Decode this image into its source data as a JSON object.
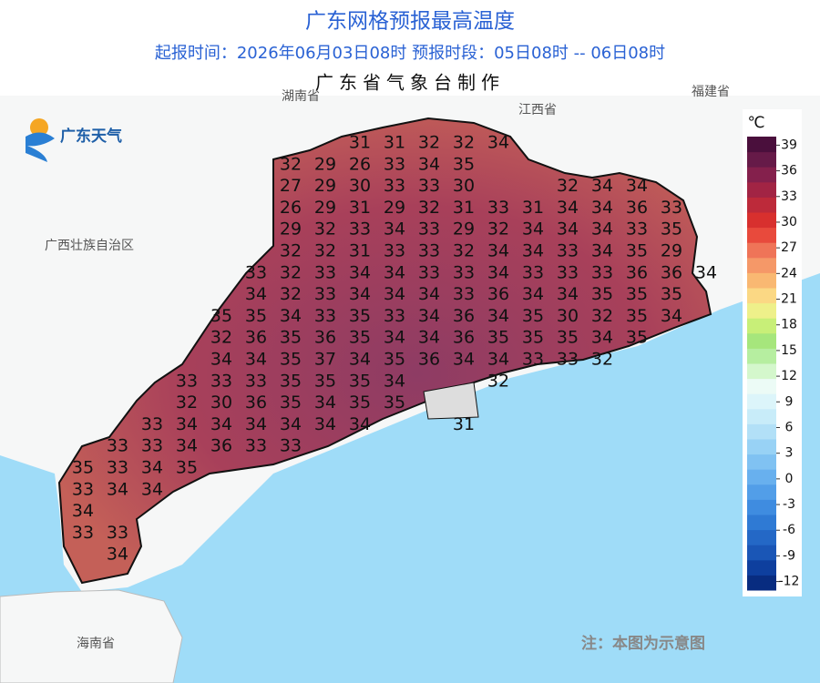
{
  "header": {
    "title": "广东网格预报最高温度",
    "subtitle": "起报时间：2026年06月03日08时   预报时段：05日08时 -- 06日08时",
    "producer": "广东省气象台制作"
  },
  "logo": "广东天气",
  "region_labels": [
    "湖南省",
    "江西省",
    "福建省",
    "广西壮族自治区",
    "海南省"
  ],
  "note": "注：本图为示意图",
  "legend": {
    "unit": "℃",
    "lim": [
      -13,
      40
    ],
    "ticks": [
      39,
      36,
      33,
      30,
      27,
      24,
      21,
      18,
      15,
      12,
      9,
      6,
      3,
      0,
      -3,
      -6,
      -9,
      -12
    ],
    "colors": [
      "#082c80",
      "#0e3f9e",
      "#1a56b6",
      "#2468c6",
      "#2f7ad4",
      "#3f8ce0",
      "#529ee8",
      "#68b0ee",
      "#80c2f2",
      "#98d2f5",
      "#b2e0f7",
      "#c8ecf9",
      "#dcf5fa",
      "#ecfbf6",
      "#d4f7cc",
      "#b6eea0",
      "#a6e67c",
      "#c8ef78",
      "#eef08a",
      "#fbd884",
      "#f9b872",
      "#f59868",
      "#ef7458",
      "#e84a3c",
      "#d8302e",
      "#bd2a3a",
      "#a22444",
      "#84204c",
      "#661a48",
      "#4a0f3c"
    ]
  },
  "grid": {
    "rows": [
      [
        null,
        null,
        null,
        null,
        null,
        null,
        null,
        null,
        31,
        31,
        32,
        32,
        34
      ],
      [
        null,
        null,
        null,
        null,
        null,
        null,
        32,
        29,
        26,
        33,
        34,
        35
      ],
      [
        null,
        null,
        null,
        null,
        null,
        null,
        27,
        29,
        30,
        33,
        33,
        30,
        null,
        null,
        32,
        34,
        34
      ],
      [
        null,
        null,
        null,
        null,
        null,
        null,
        26,
        29,
        31,
        29,
        32,
        31,
        33,
        31,
        34,
        34,
        36,
        33
      ],
      [
        null,
        null,
        null,
        null,
        null,
        null,
        29,
        32,
        33,
        34,
        33,
        29,
        32,
        34,
        34,
        34,
        33,
        35
      ],
      [
        null,
        null,
        null,
        null,
        null,
        null,
        32,
        32,
        31,
        33,
        33,
        32,
        34,
        34,
        33,
        34,
        35,
        29
      ],
      [
        null,
        null,
        null,
        null,
        null,
        33,
        32,
        33,
        34,
        34,
        33,
        33,
        34,
        33,
        33,
        33,
        36,
        36,
        34
      ],
      [
        null,
        null,
        null,
        null,
        null,
        34,
        32,
        33,
        34,
        34,
        34,
        33,
        36,
        34,
        34,
        35,
        35,
        35
      ],
      [
        null,
        null,
        null,
        null,
        35,
        35,
        34,
        33,
        35,
        33,
        34,
        36,
        34,
        35,
        30,
        32,
        35,
        34
      ],
      [
        null,
        null,
        null,
        null,
        32,
        36,
        35,
        36,
        35,
        34,
        34,
        36,
        35,
        35,
        35,
        34,
        35
      ],
      [
        null,
        null,
        null,
        null,
        34,
        34,
        35,
        37,
        34,
        35,
        36,
        34,
        34,
        33,
        33,
        32
      ],
      [
        null,
        null,
        null,
        33,
        33,
        33,
        35,
        35,
        35,
        34,
        null,
        null,
        32
      ],
      [
        null,
        null,
        null,
        32,
        30,
        36,
        35,
        34,
        35,
        35
      ],
      [
        null,
        null,
        33,
        34,
        34,
        34,
        34,
        34,
        34,
        null,
        null,
        31
      ],
      [
        null,
        33,
        33,
        34,
        36,
        33,
        33
      ],
      [
        35,
        33,
        34,
        35
      ],
      [
        33,
        34,
        34
      ],
      [
        34
      ],
      [
        33,
        33
      ],
      [
        null,
        34
      ]
    ]
  }
}
